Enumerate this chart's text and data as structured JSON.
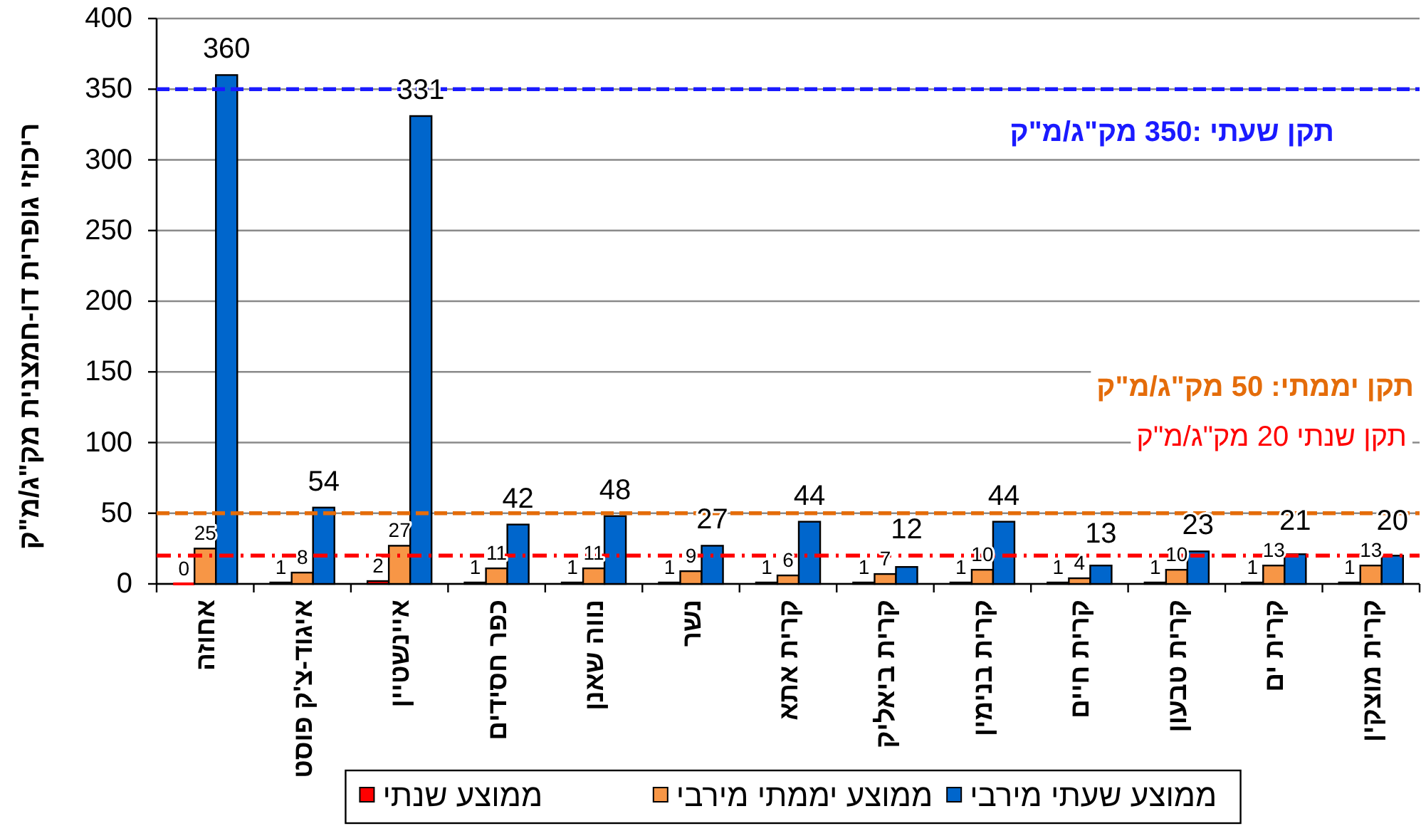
{
  "chart_data": {
    "type": "bar",
    "ylabel": "ריכוזי גופרית דו-חמצנית מק\"ג/מ\"ק",
    "categories": [
      "אחוזה",
      "איגוד-צ'ק פוסט",
      "איינשטיין",
      "כפר חסידים",
      "נווה שאנן",
      "נשר",
      "קרית אתא",
      "קרית ביאליק",
      "קרית בנימין",
      "קרית חיים",
      "קרית טבעון",
      "קרית ים",
      "קרית מוצקין"
    ],
    "series": [
      {
        "name": "ממוצע שנתי",
        "color": "#ff0000",
        "values": [
          0,
          1,
          2,
          1,
          1,
          1,
          1,
          1,
          1,
          1,
          1,
          1,
          1
        ]
      },
      {
        "name": "ממוצע יממתי מירבי",
        "color": "#f79646",
        "values": [
          25,
          8,
          27,
          11,
          11,
          9,
          6,
          7,
          10,
          4,
          10,
          13,
          13
        ]
      },
      {
        "name": "ממוצע שעתי מירבי",
        "color": "#0066cc",
        "values": [
          360,
          54,
          331,
          42,
          48,
          27,
          44,
          12,
          44,
          13,
          23,
          21,
          20
        ]
      }
    ],
    "ylim": [
      0,
      400
    ],
    "yticks": [
      0,
      50,
      100,
      150,
      200,
      250,
      300,
      350,
      400
    ],
    "grid": "y",
    "legend": "bottom",
    "data_labels": true,
    "ref_lines": [
      {
        "axis": "y",
        "value": 350,
        "label": "תקן שעתי :350 מק\"ג/מ\"ק",
        "color": "#1a1aff",
        "line_style": "dashed"
      },
      {
        "axis": "y",
        "value": 50,
        "label": "תקן יממתי: 50 מק\"ג/מ\"ק",
        "color": "#e46c0a",
        "line_style": "dashed"
      },
      {
        "axis": "y",
        "value": 20,
        "label": "תקן שנתי 20 מק\"ג/מ\"ק",
        "color": "#ff0000",
        "line_style": "dashdot"
      }
    ]
  }
}
